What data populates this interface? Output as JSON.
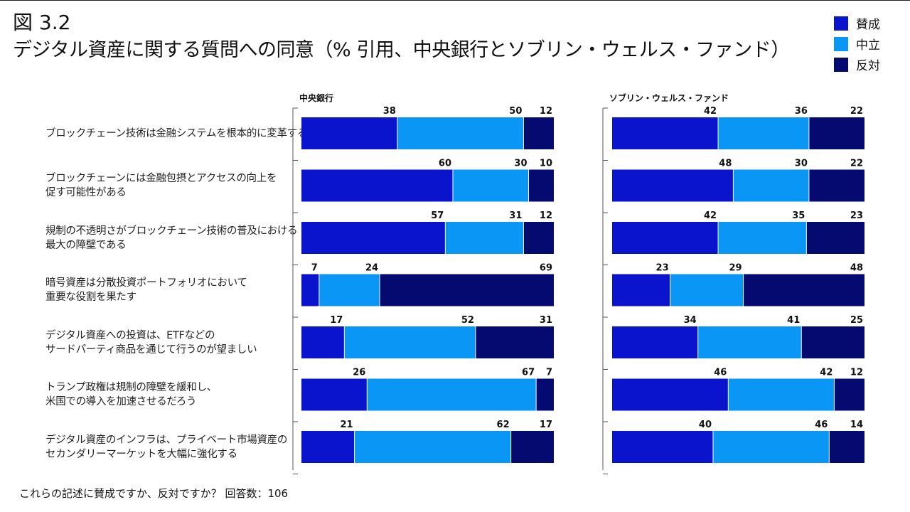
{
  "figure": {
    "number": "図 3.2",
    "title": "デジタル資産に関する質問への同意（% 引用、中央銀行とソブリン・ウェルス・ファンド）"
  },
  "footnote": "これらの記述に賛成ですか、反対ですか？ 回答数：106",
  "colors": {
    "agree": "#0A14CC",
    "neutral": "#0A96F5",
    "disagree": "#050A70"
  },
  "chart_data": {
    "type": "bar",
    "orientation": "horizontal",
    "stacked": true,
    "percent_stacked": true,
    "legend": {
      "position": "top-right",
      "entries": [
        "賛成",
        "中立",
        "反対"
      ]
    },
    "series_names": [
      "賛成",
      "中立",
      "反対"
    ],
    "categories": [
      [
        "ブロックチェーン技術は金融システムを根本的に変革する"
      ],
      [
        "ブロックチェーンには金融包摂とアクセスの向上を",
        "促す可能性がある"
      ],
      [
        "規制の不透明さがブロックチェーン技術の普及における",
        "最大の障壁である"
      ],
      [
        "暗号資産は分散投資ポートフォリオにおいて",
        "重要な役割を果たす"
      ],
      [
        "デジタル資産への投資は、ETFなどの",
        "サードパーティ商品を通じて行うのが望ましい"
      ],
      [
        "トランプ政権は規制の障壁を緩和し、",
        "米国での導入を加速させるだろう"
      ],
      [
        "デジタル資産のインフラは、プライベート市場資産の",
        "セカンダリーマーケットを大幅に強化する"
      ]
    ],
    "panels": [
      {
        "title": "中央銀行",
        "values": [
          [
            38,
            50,
            12
          ],
          [
            60,
            30,
            10
          ],
          [
            57,
            31,
            12
          ],
          [
            7,
            24,
            69
          ],
          [
            17,
            52,
            31
          ],
          [
            26,
            67,
            7
          ],
          [
            21,
            62,
            17
          ]
        ]
      },
      {
        "title": "ソブリン・ウェルス・ファンド",
        "values": [
          [
            42,
            36,
            22
          ],
          [
            48,
            30,
            22
          ],
          [
            42,
            35,
            23
          ],
          [
            23,
            29,
            48
          ],
          [
            34,
            41,
            25
          ],
          [
            46,
            42,
            12
          ],
          [
            40,
            46,
            14
          ]
        ]
      }
    ],
    "xlim": [
      0,
      100
    ]
  }
}
